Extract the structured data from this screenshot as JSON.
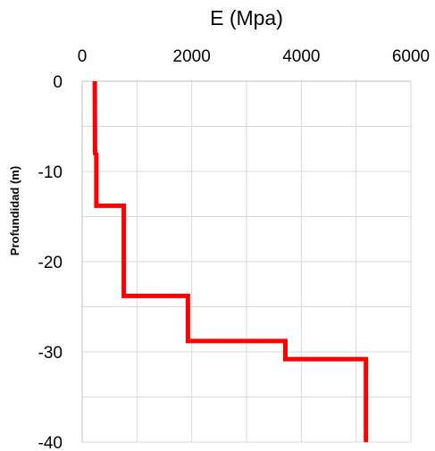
{
  "chart_data": {
    "type": "line",
    "title": "E (Mpa)",
    "xlabel": "",
    "ylabel": "Profundidad (m)",
    "xlim": [
      0,
      6000
    ],
    "ylim": [
      -40,
      0
    ],
    "x_ticks": [
      0,
      2000,
      4000,
      6000
    ],
    "y_ticks": [
      0,
      -10,
      -20,
      -30,
      -40
    ],
    "x_tick_labels": [
      "0",
      "2000",
      "4000",
      "6000"
    ],
    "y_tick_labels": [
      "0",
      "-10",
      "-20",
      "-30",
      "-40"
    ],
    "x_axis_position": "top",
    "grid": true,
    "grid_minor": true,
    "legend": "none",
    "series": [
      {
        "color": "#ff0000",
        "points": [
          [
            230,
            0
          ],
          [
            235,
            -8.0
          ],
          [
            260,
            -8.1
          ],
          [
            260,
            -13.8
          ],
          [
            760,
            -13.8
          ],
          [
            760,
            -23.8
          ],
          [
            1930,
            -23.8
          ],
          [
            1930,
            -28.8
          ],
          [
            3710,
            -28.8
          ],
          [
            3710,
            -30.8
          ],
          [
            5180,
            -30.8
          ],
          [
            5180,
            -40
          ]
        ]
      }
    ]
  }
}
